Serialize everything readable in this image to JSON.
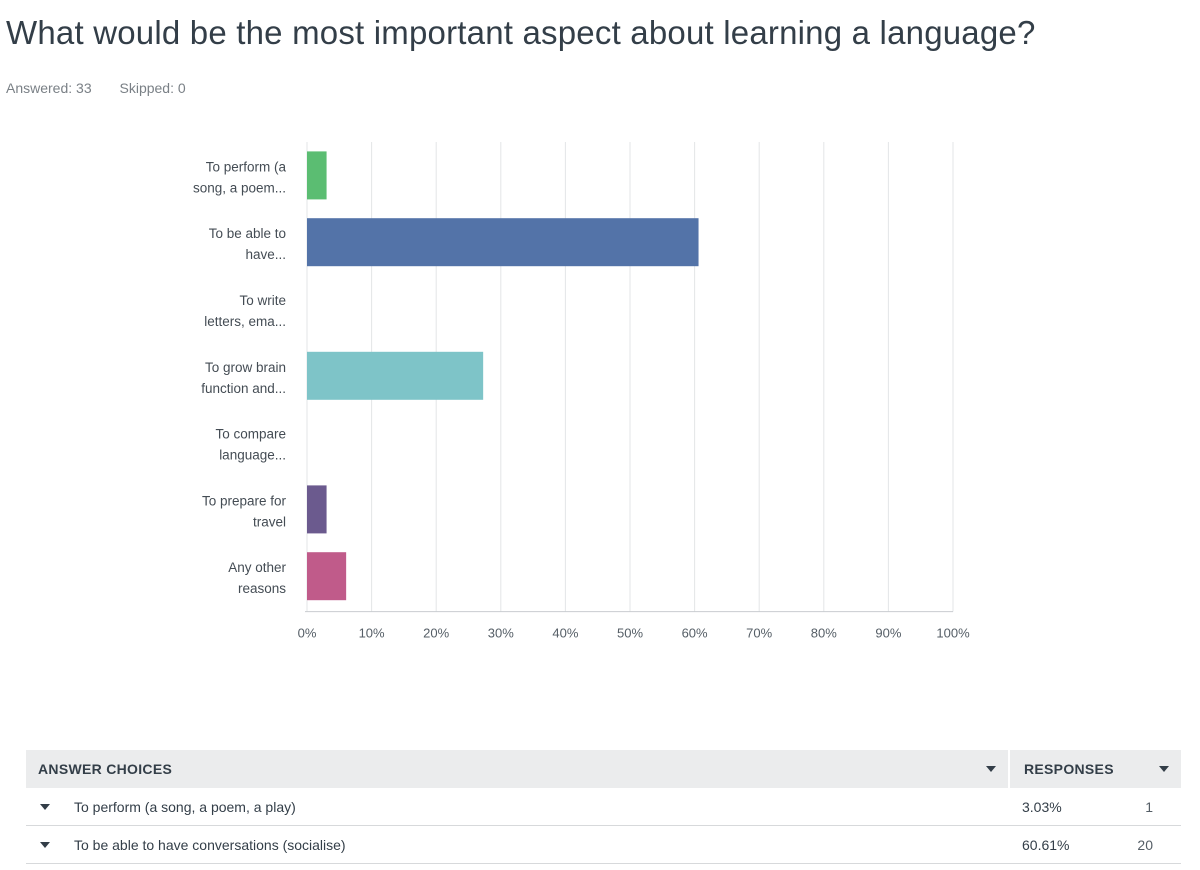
{
  "question": {
    "title": "What would be the most important aspect about learning a language?",
    "answered": "Answered: 33",
    "skipped": "Skipped: 0"
  },
  "chart_data": {
    "type": "bar",
    "orientation": "horizontal",
    "categories": [
      [
        "To perform (a",
        "song, a poem..."
      ],
      [
        "To be able to",
        "have..."
      ],
      [
        "To write",
        "letters, ema..."
      ],
      [
        "To grow brain",
        "function and..."
      ],
      [
        "To compare",
        "language..."
      ],
      [
        "To prepare for",
        "travel"
      ],
      [
        "Any other",
        "reasons"
      ]
    ],
    "values": [
      3.03,
      60.61,
      0,
      27.27,
      0,
      3.03,
      6.06
    ],
    "colors": [
      "#5bbd72",
      "#5373a8",
      "#5bc0de",
      "#7ec4c8",
      "#f0ad4e",
      "#6b5a8e",
      "#c05b8a"
    ],
    "x_ticks": [
      "0%",
      "10%",
      "20%",
      "30%",
      "40%",
      "50%",
      "60%",
      "70%",
      "80%",
      "90%",
      "100%"
    ],
    "xlim": [
      0,
      100
    ],
    "grid": true
  },
  "table": {
    "header_choice": "ANSWER CHOICES",
    "header_responses": "RESPONSES",
    "rows": [
      {
        "choice": "To perform (a song, a poem, a play)",
        "percent": "3.03%",
        "count": "1"
      },
      {
        "choice": "To be able to have conversations (socialise)",
        "percent": "60.61%",
        "count": "20"
      }
    ]
  }
}
